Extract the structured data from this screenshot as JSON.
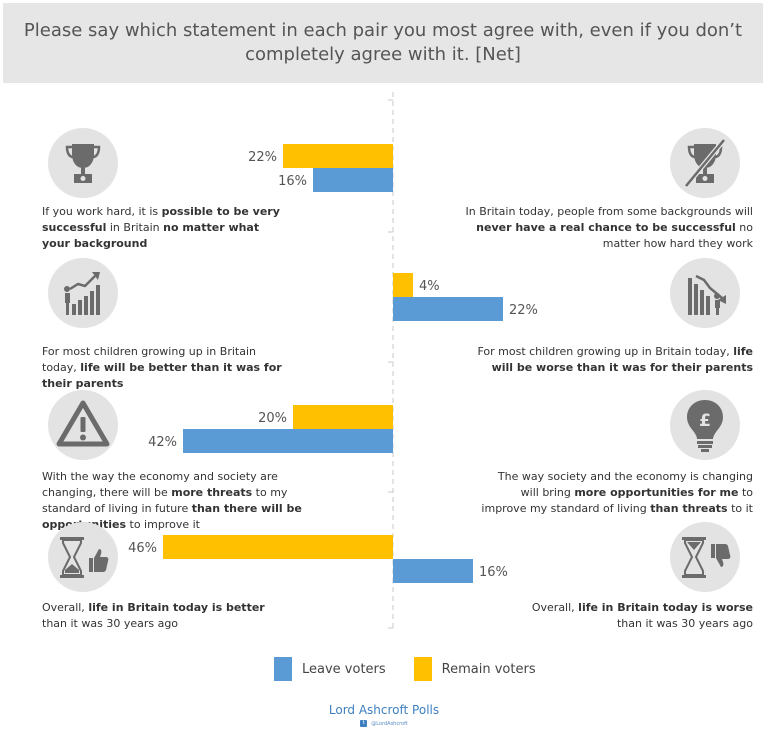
{
  "header": {
    "title": "Please say which statement in each pair you most agree with, even if you don’t completely agree with it. [Net]"
  },
  "statements": [
    {
      "left": [
        {
          "t": "If you work hard, it is ",
          "b": false
        },
        {
          "t": "possible to be very successful",
          "b": true
        },
        {
          "t": " in Britain ",
          "b": false
        },
        {
          "t": "no matter what your background",
          "b": true
        }
      ],
      "right": [
        {
          "t": "In Britain today, people from some backgrounds will ",
          "b": false
        },
        {
          "t": "never have a real chance to be successful",
          "b": true
        },
        {
          "t": " no matter how hard they work",
          "b": false
        }
      ],
      "left_icon": "trophy-icon",
      "right_icon": "crossed-trophy-icon"
    },
    {
      "left": [
        {
          "t": "For most children growing up in Britain today, ",
          "b": false
        },
        {
          "t": "life will be better than it was for their parents",
          "b": true
        }
      ],
      "right": [
        {
          "t": "For most children growing up in Britain today, ",
          "b": false
        },
        {
          "t": "life will be worse than it was for their parents",
          "b": true
        }
      ],
      "left_icon": "rising-bar-chart-icon",
      "right_icon": "falling-bar-chart-icon"
    },
    {
      "left": [
        {
          "t": "With the way the economy and society are changing, there will be ",
          "b": false
        },
        {
          "t": "more threats",
          "b": true
        },
        {
          "t": " to my standard of living in future ",
          "b": false
        },
        {
          "t": "than there will be opportunities",
          "b": true
        },
        {
          "t": " to improve it",
          "b": false
        }
      ],
      "right": [
        {
          "t": "The way society and the economy is changing will bring ",
          "b": false
        },
        {
          "t": "more opportunities for me",
          "b": true
        },
        {
          "t": " to improve my standard of living ",
          "b": false
        },
        {
          "t": "than threats",
          "b": true
        },
        {
          "t": " to it",
          "b": false
        }
      ],
      "left_icon": "warning-icon",
      "right_icon": "pound-lightbulb-icon"
    },
    {
      "left": [
        {
          "t": "Overall, ",
          "b": false
        },
        {
          "t": "life in Britain today is better",
          "b": true
        },
        {
          "t": " than it was 30 years ago",
          "b": false
        }
      ],
      "right": [
        {
          "t": "Overall, ",
          "b": false
        },
        {
          "t": "life in Britain today is worse",
          "b": true
        },
        {
          "t": " than it was 30 years ago",
          "b": false
        }
      ],
      "left_icon": "hourglass-thumbs-up-icon",
      "right_icon": "hourglass-thumbs-down-icon"
    }
  ],
  "legend": {
    "leave_label": "Leave voters",
    "remain_label": "Remain voters"
  },
  "footer": {
    "brand": "Lord Ashcroft Polls",
    "handle": "@LordAshcroft"
  },
  "colors": {
    "leave": "#5b9bd5",
    "remain": "#ffc000",
    "header_bg": "#e6e6e6",
    "icon_bg": "#e3e3e3",
    "icon_fg": "#6b6b6b",
    "brand": "#3d7fc1"
  },
  "chart_data": {
    "type": "bar",
    "orientation": "horizontal-diverging",
    "series": [
      {
        "name": "Remain voters",
        "values": [
          22,
          4,
          20,
          46
        ],
        "sides": [
          "left",
          "right",
          "left",
          "left"
        ]
      },
      {
        "name": "Leave voters",
        "values": [
          16,
          22,
          42,
          16
        ],
        "sides": [
          "left",
          "right",
          "left",
          "right"
        ]
      }
    ],
    "value_labels": {
      "Remain voters": [
        "22%",
        "4%",
        "20%",
        "46%"
      ],
      "Leave voters": [
        "16%",
        "22%",
        "42%",
        "16%"
      ]
    },
    "legend_position": "bottom"
  }
}
